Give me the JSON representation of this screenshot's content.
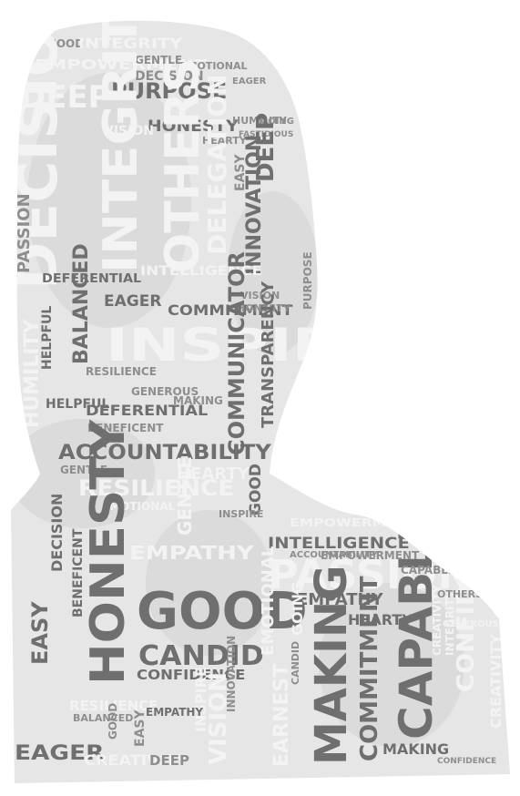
{
  "title": "",
  "colors": {
    "silhouette": "#e6e6e6",
    "silhouette_shade": "#d2d2d2",
    "word_dark": "#6f6f6f",
    "word_mid": "#8e8e8e",
    "word_light": "#f3f3f3"
  },
  "words": [
    {
      "text": "GOOD",
      "tone": "mid"
    },
    {
      "text": "INTEGRITY",
      "tone": "light"
    },
    {
      "text": "EMPOWERMENT",
      "tone": "light"
    },
    {
      "text": "DEEP",
      "tone": "light"
    },
    {
      "text": "PURPOSE",
      "tone": "dark"
    },
    {
      "text": "GENTLE",
      "tone": "mid"
    },
    {
      "text": "DECISION",
      "tone": "mid"
    },
    {
      "text": "EMOTIONAL",
      "tone": "mid"
    },
    {
      "text": "EAGER",
      "tone": "mid"
    },
    {
      "text": "HONESTY",
      "tone": "dark"
    },
    {
      "text": "VISION",
      "tone": "light"
    },
    {
      "text": "HUMILITY",
      "tone": "mid"
    },
    {
      "text": "HEARTY",
      "tone": "mid"
    },
    {
      "text": "GOING",
      "tone": "mid"
    },
    {
      "text": "FASTIDIOUS",
      "tone": "mid"
    },
    {
      "text": "DECISION",
      "tone": "light"
    },
    {
      "text": "INTEGRITY",
      "tone": "light"
    },
    {
      "text": "OTHERS",
      "tone": "light"
    },
    {
      "text": "DELEGATION",
      "tone": "light"
    },
    {
      "text": "EASY",
      "tone": "mid"
    },
    {
      "text": "DEEP",
      "tone": "dark"
    },
    {
      "text": "INNOVATION",
      "tone": "dark"
    },
    {
      "text": "PASSION",
      "tone": "mid"
    },
    {
      "text": "DEFERENTIAL",
      "tone": "dark"
    },
    {
      "text": "INTELLIGENCE",
      "tone": "light"
    },
    {
      "text": "EAGER",
      "tone": "dark"
    },
    {
      "text": "COMMITMENT",
      "tone": "dark"
    },
    {
      "text": "VISION",
      "tone": "mid"
    },
    {
      "text": "HONESTY",
      "tone": "mid"
    },
    {
      "text": "PURPOSE",
      "tone": "mid"
    },
    {
      "text": "HELPFUL",
      "tone": "dark"
    },
    {
      "text": "BALANCED",
      "tone": "dark"
    },
    {
      "text": "INSPIRE",
      "tone": "light"
    },
    {
      "text": "COMMUNICATOR",
      "tone": "dark"
    },
    {
      "text": "TRANSPARENCY",
      "tone": "dark"
    },
    {
      "text": "RESILIENCE",
      "tone": "mid"
    },
    {
      "text": "HUMILITY",
      "tone": "light"
    },
    {
      "text": "GENEROUS",
      "tone": "mid"
    },
    {
      "text": "HELPFUL",
      "tone": "dark"
    },
    {
      "text": "MAKING",
      "tone": "mid"
    },
    {
      "text": "DEFERENTIAL",
      "tone": "dark"
    },
    {
      "text": "BENEFICENT",
      "tone": "mid"
    },
    {
      "text": "ACCOUNTABILITY",
      "tone": "dark"
    },
    {
      "text": "GENTLE",
      "tone": "mid"
    },
    {
      "text": "HEARTY",
      "tone": "light"
    },
    {
      "text": "RESILIENCE",
      "tone": "light"
    },
    {
      "text": "EMOTIONAL",
      "tone": "light"
    },
    {
      "text": "GOOD",
      "tone": "dark"
    },
    {
      "text": "INSPIRE",
      "tone": "mid"
    },
    {
      "text": "EMPOWERMENT",
      "tone": "light"
    },
    {
      "text": "INTELLIGENCE",
      "tone": "dark"
    },
    {
      "text": "GENTLE",
      "tone": "light"
    },
    {
      "text": "DECISION",
      "tone": "dark"
    },
    {
      "text": "EMPATHY",
      "tone": "light"
    },
    {
      "text": "PASSION",
      "tone": "light"
    },
    {
      "text": "HONESTY",
      "tone": "dark"
    },
    {
      "text": "GOOD",
      "tone": "dark"
    },
    {
      "text": "BENEFICENT",
      "tone": "dark"
    },
    {
      "text": "EASY",
      "tone": "dark"
    },
    {
      "text": "CANDID",
      "tone": "dark"
    },
    {
      "text": "CONFIDENCE",
      "tone": "dark"
    },
    {
      "text": "EMPATHY",
      "tone": "dark"
    },
    {
      "text": "HEARTY",
      "tone": "dark"
    },
    {
      "text": "CAPABLE",
      "tone": "dark"
    },
    {
      "text": "CONFIDENCE",
      "tone": "light"
    },
    {
      "text": "CREATIVITY",
      "tone": "light"
    },
    {
      "text": "MAKING",
      "tone": "dark"
    },
    {
      "text": "COMMITMENT",
      "tone": "dark"
    },
    {
      "text": "EMOTIONAL",
      "tone": "light"
    },
    {
      "text": "GOING",
      "tone": "light"
    },
    {
      "text": "INNOVATION",
      "tone": "mid"
    },
    {
      "text": "VISION",
      "tone": "light"
    },
    {
      "text": "INSPIRE",
      "tone": "light"
    },
    {
      "text": "EARNEST",
      "tone": "light"
    },
    {
      "text": "RESILIENCE",
      "tone": "light"
    },
    {
      "text": "EMPATHY",
      "tone": "dark"
    },
    {
      "text": "BALANCED",
      "tone": "mid"
    },
    {
      "text": "EAGER",
      "tone": "dark"
    },
    {
      "text": "CREATIVITY",
      "tone": "light"
    },
    {
      "text": "DEEP",
      "tone": "mid"
    },
    {
      "text": "EASY",
      "tone": "mid"
    },
    {
      "text": "GOOD",
      "tone": "mid"
    },
    {
      "text": "MAKING",
      "tone": "dark"
    },
    {
      "text": "CONFIDENCE",
      "tone": "mid"
    },
    {
      "text": "CAPABLE",
      "tone": "mid"
    },
    {
      "text": "CREATIVITY",
      "tone": "light"
    },
    {
      "text": "INTEGRITY",
      "tone": "light"
    },
    {
      "text": "OTHERS",
      "tone": "mid"
    },
    {
      "text": "ACCOUNTABILITY",
      "tone": "mid"
    },
    {
      "text": "CANDID",
      "tone": "mid"
    },
    {
      "text": "GENEROUS",
      "tone": "light"
    },
    {
      "text": "EMPOWERMENT",
      "tone": "mid"
    }
  ]
}
